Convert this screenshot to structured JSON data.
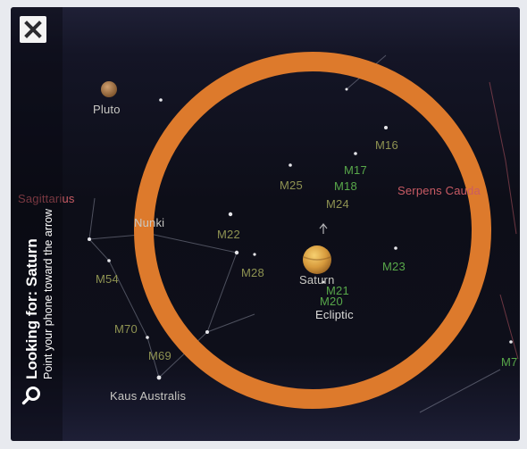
{
  "close_button": {
    "icon": "close-icon"
  },
  "search": {
    "icon": "search-icon",
    "title": "Looking for: Saturn",
    "hint": "Point your phone toward the arrow"
  },
  "icons": {
    "target": "saturn-icon",
    "planet": "pluto-icon",
    "ring": "target-ring"
  },
  "labels": {
    "pluto": "Pluto",
    "sagittarius": "Sagittarius",
    "nunki": "Nunki",
    "m16": "M16",
    "m17": "M17",
    "m18": "M18",
    "m25": "M25",
    "m24": "M24",
    "serpens_cauda": "Serpens Cauda",
    "m22": "M22",
    "m28": "M28",
    "m54": "M54",
    "m70": "M70",
    "m69": "M69",
    "saturn": "Saturn",
    "m21": "M21",
    "m20": "M20",
    "ecliptic": "Ecliptic",
    "m23": "M23",
    "m7": "M7",
    "kaus_australis": "Kaus Australis"
  },
  "colors": {
    "ring": "#dd7a2c",
    "messier_green": "#58a84a",
    "messier_olive": "#8f9352",
    "constellation_name": "#c95b64",
    "star_name": "#c9c8c3",
    "ecliptic_name": "#dcdcda",
    "banner_text": "#ffffff",
    "constellation_line": "#9ea2b4",
    "boundary_line": "#b85562"
  }
}
